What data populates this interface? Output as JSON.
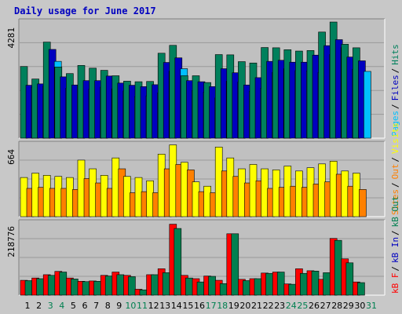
{
  "chart_data": [
    {
      "panel": "hits-files-pages",
      "type": "bar",
      "title": "Daily usage for June 2017",
      "ylabel_max": "4281",
      "y_max": 4281,
      "right_labels": [
        "Pages",
        "Files",
        "Hits"
      ],
      "categories": [
        "1",
        "2",
        "3",
        "4",
        "5",
        "6",
        "7",
        "8",
        "9",
        "10",
        "11",
        "12",
        "13",
        "14",
        "15",
        "16",
        "17",
        "18",
        "19",
        "20",
        "21",
        "22",
        "23",
        "24",
        "25",
        "26",
        "27",
        "28",
        "29",
        "30",
        "31"
      ],
      "series": [
        {
          "name": "Hits",
          "color": "#00805C",
          "values": [
            2640,
            2180,
            3540,
            2620,
            2380,
            2680,
            2580,
            2500,
            2300,
            2100,
            2080,
            2090,
            3130,
            3420,
            2300,
            2300,
            2050,
            3080,
            3070,
            2820,
            2770,
            3340,
            3330,
            3260,
            3210,
            3230,
            3910,
            4280,
            3460,
            3330,
            null
          ]
        },
        {
          "name": "Files",
          "color": "#0000C0",
          "values": [
            1950,
            2000,
            3270,
            2260,
            1960,
            2120,
            2120,
            2290,
            2030,
            1950,
            1900,
            1970,
            2790,
            2960,
            2120,
            2080,
            1900,
            2560,
            2410,
            1960,
            2230,
            2830,
            2870,
            2800,
            2800,
            3060,
            3410,
            3630,
            2990,
            2850,
            null
          ]
        },
        {
          "name": "Pages",
          "color": "#00C0FF",
          "values": [
            1880,
            1920,
            2830,
            1840,
            1950,
            1800,
            1880,
            1820,
            1740,
            1530,
            1560,
            1670,
            2470,
            2560,
            1750,
            1690,
            1480,
            2100,
            2070,
            1720,
            1840,
            2420,
            2560,
            2490,
            2480,
            2420,
            3080,
            3340,
            2540,
            2460,
            null
          ]
        }
      ]
    },
    {
      "panel": "visits-sites",
      "type": "bar",
      "ylabel_max": "664",
      "y_max": 664,
      "right_labels": [
        "Sites",
        "Out",
        "Visits"
      ],
      "categories": [
        "1",
        "2",
        "3",
        "4",
        "5",
        "6",
        "7",
        "8",
        "9",
        "10",
        "11",
        "12",
        "13",
        "14",
        "15",
        "16",
        "17",
        "18",
        "19",
        "20",
        "21",
        "22",
        "23",
        "24",
        "25",
        "26",
        "27",
        "28",
        "29",
        "30",
        "31"
      ],
      "series": [
        {
          "name": "Visits",
          "color": "#FFFF00",
          "values": [
            360,
            400,
            380,
            370,
            360,
            520,
            440,
            380,
            540,
            370,
            360,
            330,
            575,
            660,
            500,
            320,
            280,
            640,
            540,
            440,
            480,
            440,
            430,
            465,
            420,
            450,
            485,
            510,
            420,
            400,
            null
          ]
        },
        {
          "name": "Sites",
          "color": "#FF8000",
          "values": [
            260,
            270,
            260,
            260,
            250,
            350,
            310,
            260,
            440,
            220,
            230,
            220,
            440,
            480,
            430,
            230,
            220,
            420,
            370,
            310,
            330,
            260,
            270,
            280,
            270,
            300,
            320,
            390,
            280,
            250,
            null
          ]
        }
      ]
    },
    {
      "panel": "kbytes",
      "type": "bar",
      "ylabel_max": "218776",
      "y_max": 218776,
      "right_labels": [
        "kB F",
        "kB In",
        "kB Out"
      ],
      "categories": [
        "1",
        "2",
        "3",
        "4",
        "5",
        "6",
        "7",
        "8",
        "9",
        "10",
        "11",
        "12",
        "13",
        "14",
        "15",
        "16",
        "17",
        "18",
        "19",
        "20",
        "21",
        "22",
        "23",
        "24",
        "25",
        "26",
        "27",
        "28",
        "29",
        "30",
        "31"
      ],
      "series": [
        {
          "name": "kB F",
          "color": "#FF0000",
          "values": [
            45000,
            52000,
            62000,
            72000,
            52000,
            42000,
            43000,
            60000,
            70000,
            60000,
            18000,
            62000,
            80000,
            215000,
            60000,
            50000,
            58000,
            45000,
            186000,
            48000,
            50000,
            67000,
            70000,
            34000,
            80000,
            74000,
            48000,
            172000,
            110000,
            40000,
            null
          ]
        },
        {
          "name": "kB Out",
          "color": "#008050",
          "values": [
            44000,
            50000,
            60000,
            70000,
            49000,
            41000,
            42000,
            58000,
            62000,
            56000,
            16000,
            62000,
            68000,
            202000,
            52000,
            40000,
            57000,
            35000,
            186000,
            44000,
            50000,
            66000,
            70000,
            33000,
            66000,
            73000,
            68000,
            166000,
            98000,
            38000,
            null
          ]
        }
      ]
    }
  ],
  "day_labels": [
    "1",
    "2",
    "3",
    "4",
    "5",
    "6",
    "7",
    "8",
    "9",
    "10",
    "11",
    "12",
    "13",
    "14",
    "15",
    "16",
    "17",
    "18",
    "19",
    "20",
    "21",
    "22",
    "23",
    "24",
    "25",
    "26",
    "27",
    "28",
    "29",
    "30",
    "31"
  ],
  "weekend_days": [
    3,
    4,
    10,
    11,
    17,
    18,
    24,
    25,
    31
  ],
  "colors": {
    "background": "#C8C8C8",
    "plot_bg": "#C0C0C0",
    "title": "#0000C0",
    "weekday_label": "#000000",
    "weekend_label": "#008050"
  }
}
